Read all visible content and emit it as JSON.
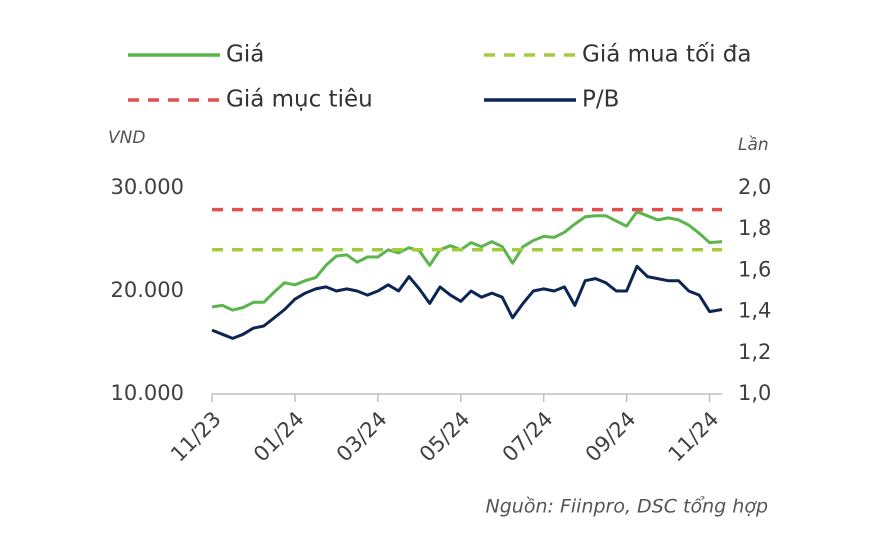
{
  "chart_data": {
    "type": "line",
    "ylabel": "VND",
    "y2label": "Lần",
    "source": "Nguồn: Fiinpro, DSC tổng hợp",
    "xlim": [
      0,
      12.3
    ],
    "xticks": [
      {
        "value": 0,
        "label": "11/23"
      },
      {
        "value": 2,
        "label": "01/24"
      },
      {
        "value": 4,
        "label": "03/24"
      },
      {
        "value": 6,
        "label": "05/24"
      },
      {
        "value": 8,
        "label": "07/24"
      },
      {
        "value": 10,
        "label": "09/24"
      },
      {
        "value": 12,
        "label": "11/24"
      }
    ],
    "ylim": [
      10000,
      30000
    ],
    "yticks": [
      {
        "value": 10000,
        "label": "10.000"
      },
      {
        "value": 20000,
        "label": "20.000"
      },
      {
        "value": 30000,
        "label": "30.000"
      }
    ],
    "y2lim": [
      1.0,
      2.0
    ],
    "y2ticks": [
      {
        "value": 1.0,
        "label": "1,0"
      },
      {
        "value": 1.2,
        "label": "1,2"
      },
      {
        "value": 1.4,
        "label": "1,4"
      },
      {
        "value": 1.6,
        "label": "1,6"
      },
      {
        "value": 1.8,
        "label": "1,8"
      },
      {
        "value": 2.0,
        "label": "2,0"
      }
    ],
    "x": [
      0,
      0.25,
      0.5,
      0.75,
      1,
      1.25,
      1.5,
      1.75,
      2,
      2.25,
      2.5,
      2.75,
      3,
      3.25,
      3.5,
      3.75,
      4,
      4.25,
      4.5,
      4.75,
      5,
      5.25,
      5.5,
      5.75,
      6,
      6.25,
      6.5,
      6.75,
      7,
      7.25,
      7.5,
      7.75,
      8,
      8.25,
      8.5,
      8.75,
      9,
      9.25,
      9.5,
      9.75,
      10,
      10.25,
      10.5,
      10.75,
      11,
      11.25,
      11.5,
      11.75,
      12,
      12.3
    ],
    "series": [
      {
        "name": "Giá",
        "color": "#5ab54b",
        "style": "solid",
        "values": [
          18450,
          18600,
          18150,
          18400,
          18900,
          18900,
          19900,
          20800,
          20600,
          21000,
          21300,
          22500,
          23400,
          23500,
          22800,
          23300,
          23300,
          24000,
          23700,
          24200,
          23900,
          22500,
          24000,
          24400,
          24000,
          24700,
          24300,
          24800,
          24300,
          22700,
          24300,
          24900,
          25300,
          25200,
          25700,
          26500,
          27200,
          27300,
          27300,
          26800,
          26300,
          27700,
          27300,
          26900,
          27100,
          26900,
          26400,
          25600,
          24700,
          24800
        ]
      },
      {
        "name": "Giá mua tối đa",
        "color": "#a3cc3c",
        "style": "dashed",
        "level": 24000
      },
      {
        "name": "Giá mục tiêu",
        "color": "#e0504f",
        "style": "dashed",
        "level": 27900
      },
      {
        "name": "P/B",
        "color": "#0c2555",
        "style": "solid",
        "axis": "y2",
        "values": [
          1.31,
          1.29,
          1.27,
          1.29,
          1.32,
          1.33,
          1.37,
          1.41,
          1.46,
          1.49,
          1.51,
          1.52,
          1.5,
          1.51,
          1.5,
          1.48,
          1.5,
          1.53,
          1.5,
          1.57,
          1.51,
          1.44,
          1.52,
          1.48,
          1.45,
          1.5,
          1.47,
          1.49,
          1.47,
          1.37,
          1.44,
          1.5,
          1.51,
          1.5,
          1.52,
          1.43,
          1.55,
          1.56,
          1.54,
          1.5,
          1.5,
          1.62,
          1.57,
          1.56,
          1.55,
          1.55,
          1.5,
          1.48,
          1.4,
          1.41
        ]
      }
    ]
  }
}
